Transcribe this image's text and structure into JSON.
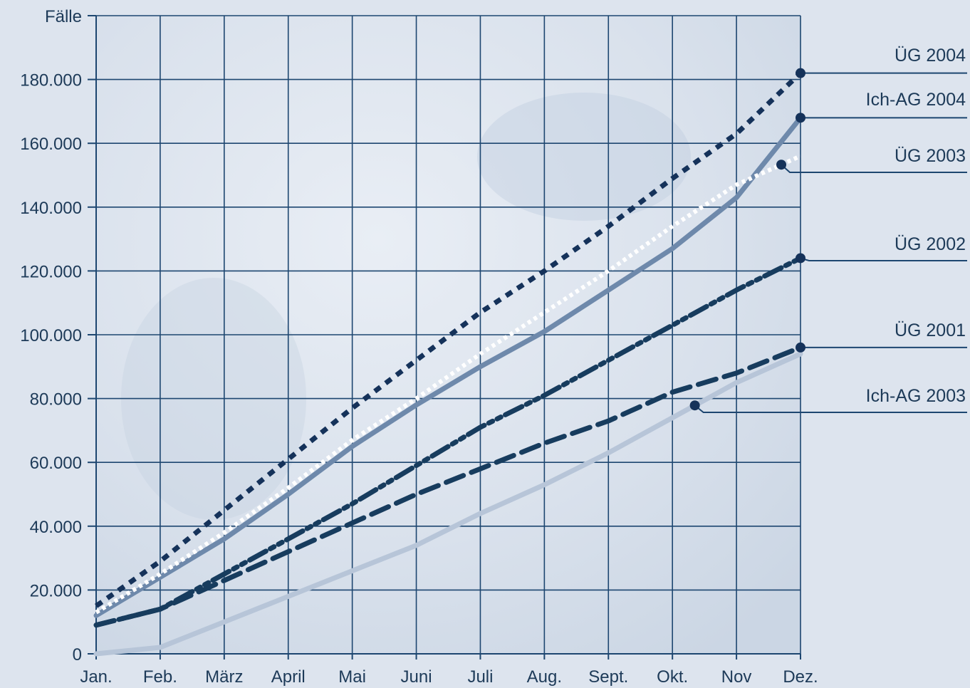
{
  "chart_data": {
    "type": "line",
    "ylabel": "Fälle",
    "categories": [
      "Jan.",
      "Feb.",
      "März",
      "April",
      "Mai",
      "Juni",
      "Juli",
      "Aug.",
      "Sept.",
      "Okt.",
      "Nov",
      "Dez."
    ],
    "y_ticks": [
      "0",
      "20.000",
      "40.000",
      "60.000",
      "80.000",
      "100.000",
      "120.000",
      "140.000",
      "160.000",
      "180.000"
    ],
    "ylim": [
      0,
      200000
    ],
    "grid": true,
    "legend_placement": "right",
    "series": [
      {
        "name": "ÜG 2004",
        "style": "dotted-bold",
        "color": "#15325a",
        "values": [
          15000,
          29000,
          45000,
          61000,
          77000,
          92000,
          107000,
          120000,
          134000,
          149000,
          163000,
          182000
        ]
      },
      {
        "name": "Ich-AG 2004",
        "style": "solid",
        "color": "#6e89ab",
        "values": [
          12000,
          24000,
          36000,
          50000,
          65000,
          78000,
          90000,
          101000,
          114000,
          127000,
          143000,
          168000
        ]
      },
      {
        "name": "ÜG 2003",
        "style": "dotted-white",
        "color": "#ffffff",
        "label_month_index": 10.7,
        "values": [
          13000,
          25000,
          38000,
          52000,
          67000,
          80000,
          94000,
          107000,
          120000,
          134000,
          147000,
          156000
        ]
      },
      {
        "name": "ÜG 2002",
        "style": "dash-dot-dot",
        "color": "#173c5e",
        "values": [
          9000,
          14000,
          25000,
          36000,
          47000,
          59000,
          71000,
          81000,
          92000,
          103000,
          114000,
          124000
        ]
      },
      {
        "name": "ÜG 2001",
        "style": "dashed",
        "color": "#173c5e",
        "values": [
          9000,
          14000,
          23000,
          32000,
          41000,
          50000,
          58000,
          66000,
          73000,
          82000,
          88000,
          96000
        ]
      },
      {
        "name": "Ich-AG 2003",
        "style": "solid-light",
        "color": "#b7c5d8",
        "label_month_index": 9.35,
        "values": [
          0,
          2000,
          10000,
          18000,
          26000,
          34000,
          44000,
          53000,
          63000,
          74000,
          85000,
          94000
        ]
      }
    ]
  }
}
